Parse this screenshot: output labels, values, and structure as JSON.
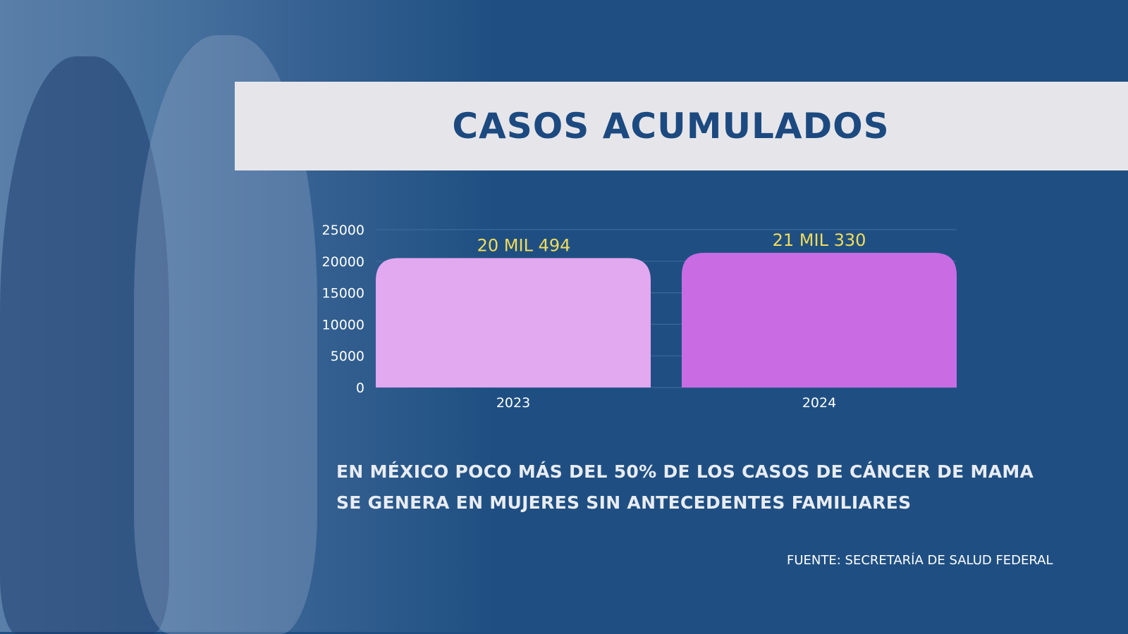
{
  "title": "CASOS ACUMULADOS",
  "chart_data": {
    "type": "bar",
    "title": "CASOS ACUMULADOS",
    "categories": [
      "2023",
      "2024"
    ],
    "values": [
      20494,
      21330
    ],
    "data_labels": [
      "20 MIL 494",
      "21 MIL 330"
    ],
    "bar_colors": [
      "#e2a8f0",
      "#c96ce4"
    ],
    "label_color": "#f2dc5a",
    "yticks": [
      "0",
      "5000",
      "10000",
      "15000",
      "20000",
      "25000"
    ],
    "ylim": [
      0,
      25000
    ],
    "grid": true,
    "xlabel": "",
    "ylabel": ""
  },
  "caption": {
    "line1": "EN MÉXICO POCO MÁS DEL 50% DE LOS CASOS DE CÁNCER DE MAMA",
    "line2": "SE GENERA EN MUJERES SIN ANTECEDENTES FAMILIARES"
  },
  "source": "FUENTE: SECRETARÍA DE SALUD FEDERAL"
}
